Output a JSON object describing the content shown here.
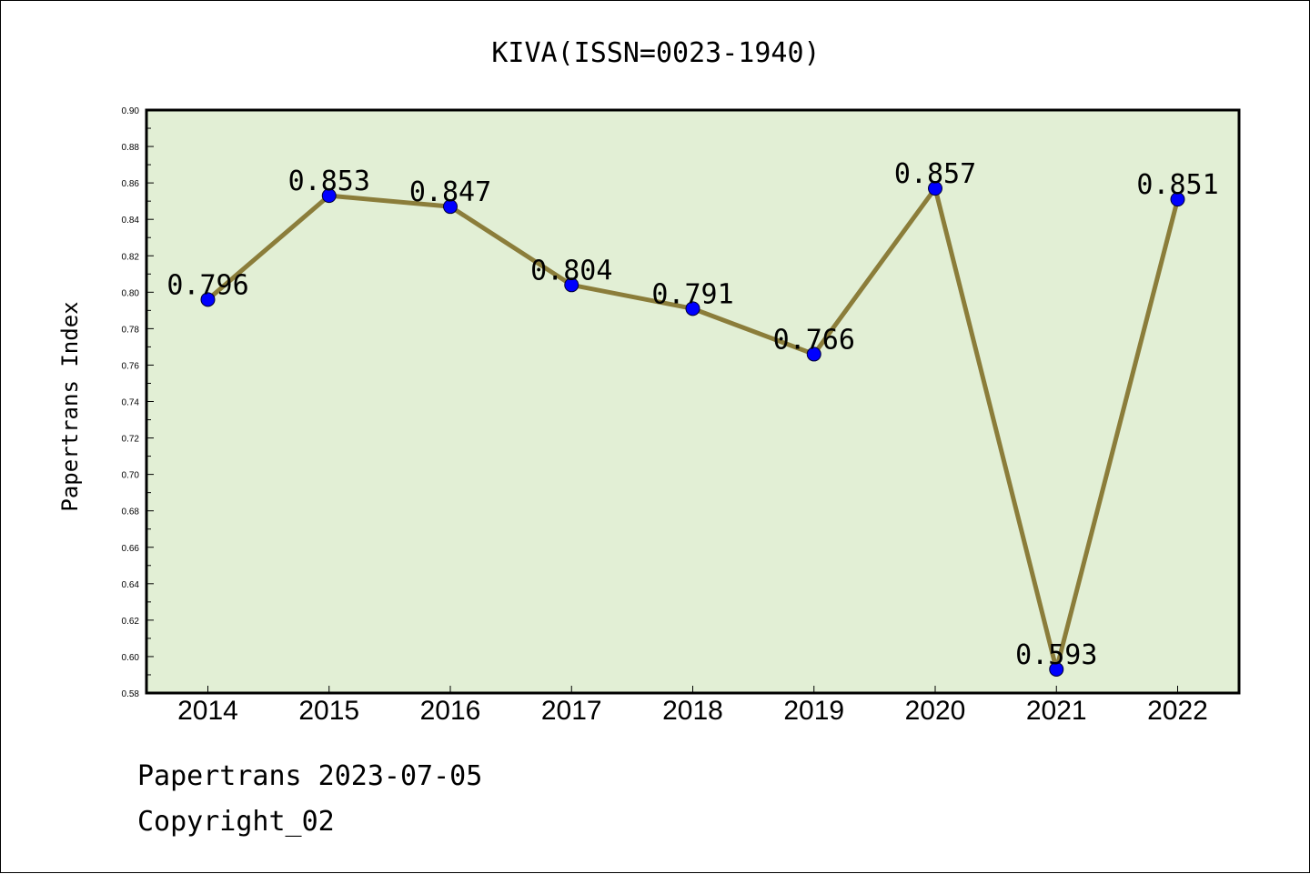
{
  "chart_data": {
    "type": "line",
    "title": "KIVA(ISSN=0023-1940)",
    "xlabel": "",
    "ylabel": "Papertrans Index",
    "categories": [
      "2014",
      "2015",
      "2016",
      "2017",
      "2018",
      "2019",
      "2020",
      "2021",
      "2022"
    ],
    "series": [
      {
        "values": [
          0.796,
          0.853,
          0.847,
          0.804,
          0.791,
          0.766,
          0.857,
          0.593,
          0.851
        ],
        "labels": [
          "0.796",
          "0.853",
          "0.847",
          "0.804",
          "0.791",
          "0.766",
          "0.857",
          "0.593",
          "0.851"
        ]
      }
    ],
    "ylim": [
      0.58,
      0.9
    ],
    "yticks": [
      "0.58",
      "0.60",
      "0.62",
      "0.64",
      "0.66",
      "0.68",
      "0.70",
      "0.72",
      "0.74",
      "0.76",
      "0.78",
      "0.80",
      "0.82",
      "0.84",
      "0.86",
      "0.88",
      "0.90"
    ],
    "grid": false,
    "legend": "none",
    "colors": {
      "plot_background": "#e2efd5",
      "line": "#8b7d3a",
      "marker": "#0000ff"
    }
  },
  "footer": {
    "line1": "Papertrans 2023-07-05",
    "line2": "Copyright_02"
  }
}
